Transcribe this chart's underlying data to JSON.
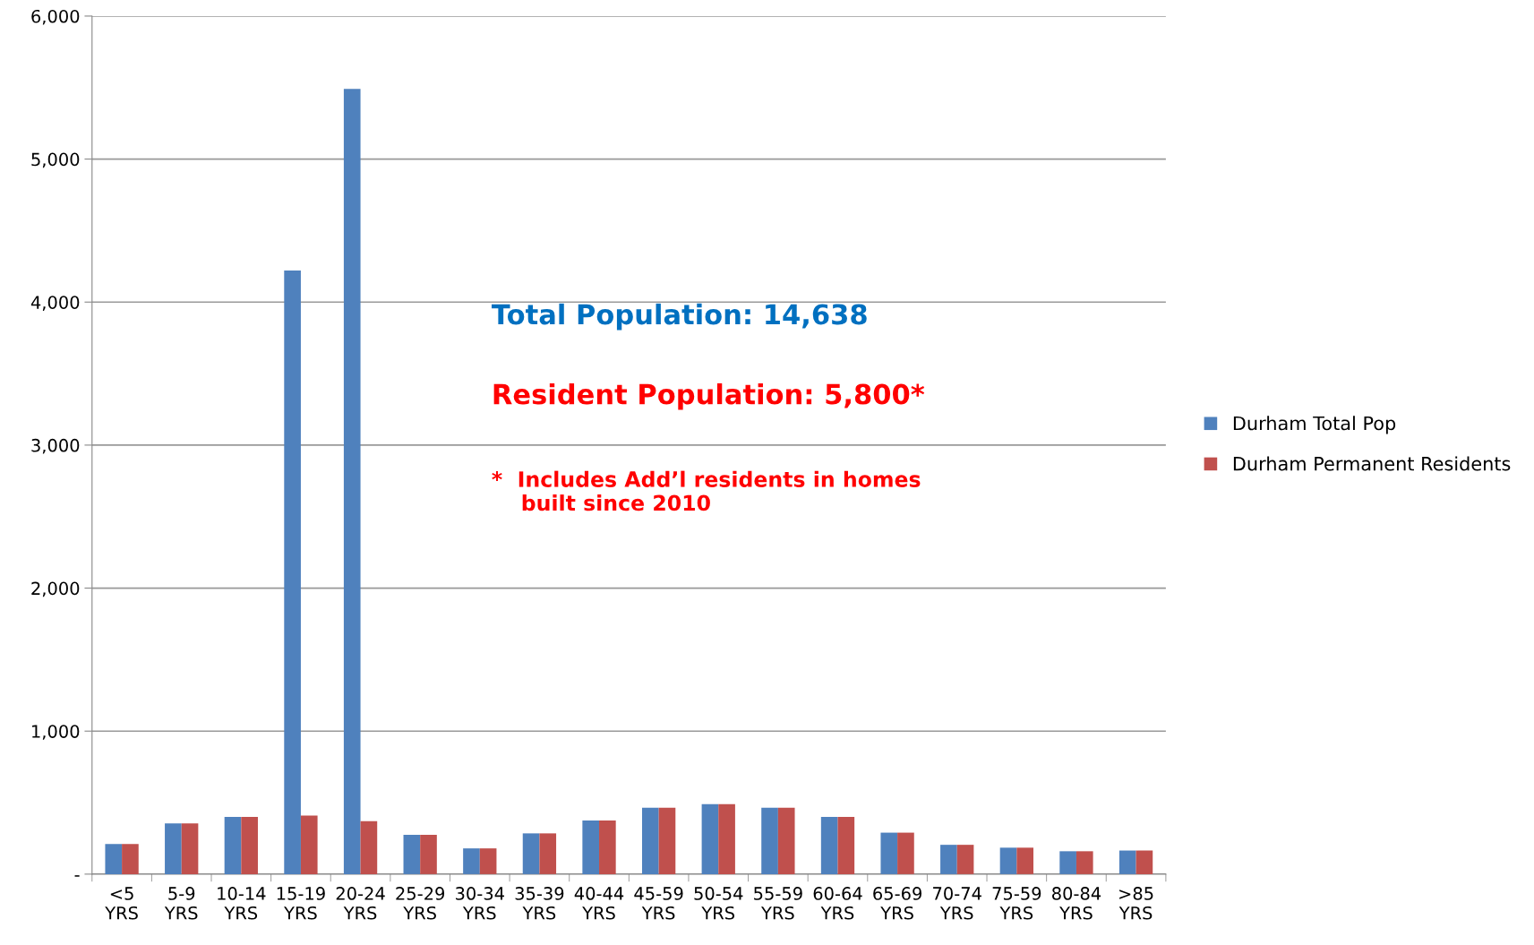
{
  "chart_data": {
    "type": "bar",
    "categories": [
      "<5\nYRS",
      "5-9\nYRS",
      "10-14\nYRS",
      "15-19\nYRS",
      "20-24\nYRS",
      "25-29\nYRS",
      "30-34\nYRS",
      "35-39\nYRS",
      "40-44\nYRS",
      "45-59\nYRS",
      "50-54\nYRS",
      "55-59\nYRS",
      "60-64\nYRS",
      "65-69\nYRS",
      "70-74\nYRS",
      "75-59\nYRS",
      "80-84\nYRS",
      ">85\nYRS"
    ],
    "series": [
      {
        "name": "Durham Total Pop",
        "color": "#4f81bd",
        "values": [
          210,
          355,
          400,
          4220,
          5490,
          275,
          180,
          285,
          375,
          465,
          490,
          465,
          400,
          290,
          205,
          185,
          160,
          165
        ]
      },
      {
        "name": "Durham Permanent Residents",
        "color": "#c0504d",
        "values": [
          210,
          355,
          400,
          410,
          370,
          275,
          180,
          285,
          375,
          465,
          490,
          465,
          400,
          290,
          205,
          185,
          160,
          165
        ]
      }
    ],
    "ylim": [
      0,
      6000
    ],
    "yticks": [
      {
        "value": 0,
        "label": "-"
      },
      {
        "value": 1000,
        "label": "1,000"
      },
      {
        "value": 2000,
        "label": "2,000"
      },
      {
        "value": 3000,
        "label": "3,000"
      },
      {
        "value": 4000,
        "label": "4,000"
      },
      {
        "value": 5000,
        "label": "5,000"
      },
      {
        "value": 6000,
        "label": "6,000"
      }
    ],
    "grid": "y",
    "legend": "right",
    "annotations": [
      "Total Population: 14,638",
      "Resident Population: 5,800*",
      "*  Includes Add’l residents in homes\n    built since 2010"
    ]
  }
}
